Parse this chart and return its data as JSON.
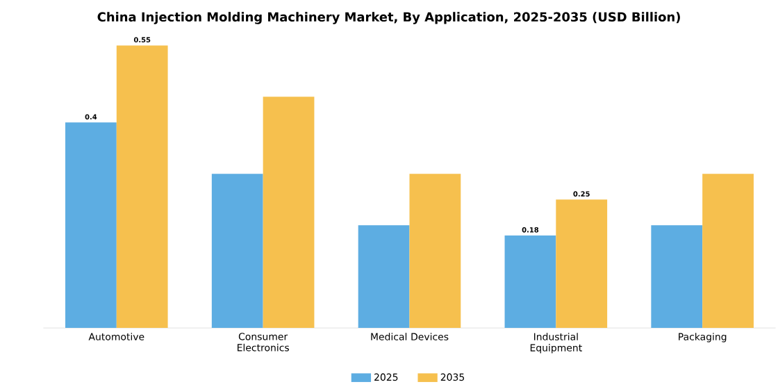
{
  "chart_data": {
    "type": "bar",
    "title": "China Injection Molding Machinery Market, By Application, 2025-2035 (USD Billion)",
    "categories": [
      "Automotive",
      "Consumer Electronics",
      "Medical Devices",
      "Industrial Equipment",
      "Packaging"
    ],
    "series": [
      {
        "name": "2025",
        "color": "#5dade2",
        "values": [
          0.4,
          0.3,
          0.2,
          0.18,
          0.2
        ],
        "value_labels": [
          "0.4",
          null,
          null,
          "0.18",
          null
        ]
      },
      {
        "name": "2035",
        "color": "#f6c04e",
        "values": [
          0.55,
          0.45,
          0.3,
          0.25,
          0.3
        ],
        "value_labels": [
          "0.55",
          null,
          null,
          "0.25",
          null
        ]
      }
    ],
    "legend": "bottom"
  }
}
